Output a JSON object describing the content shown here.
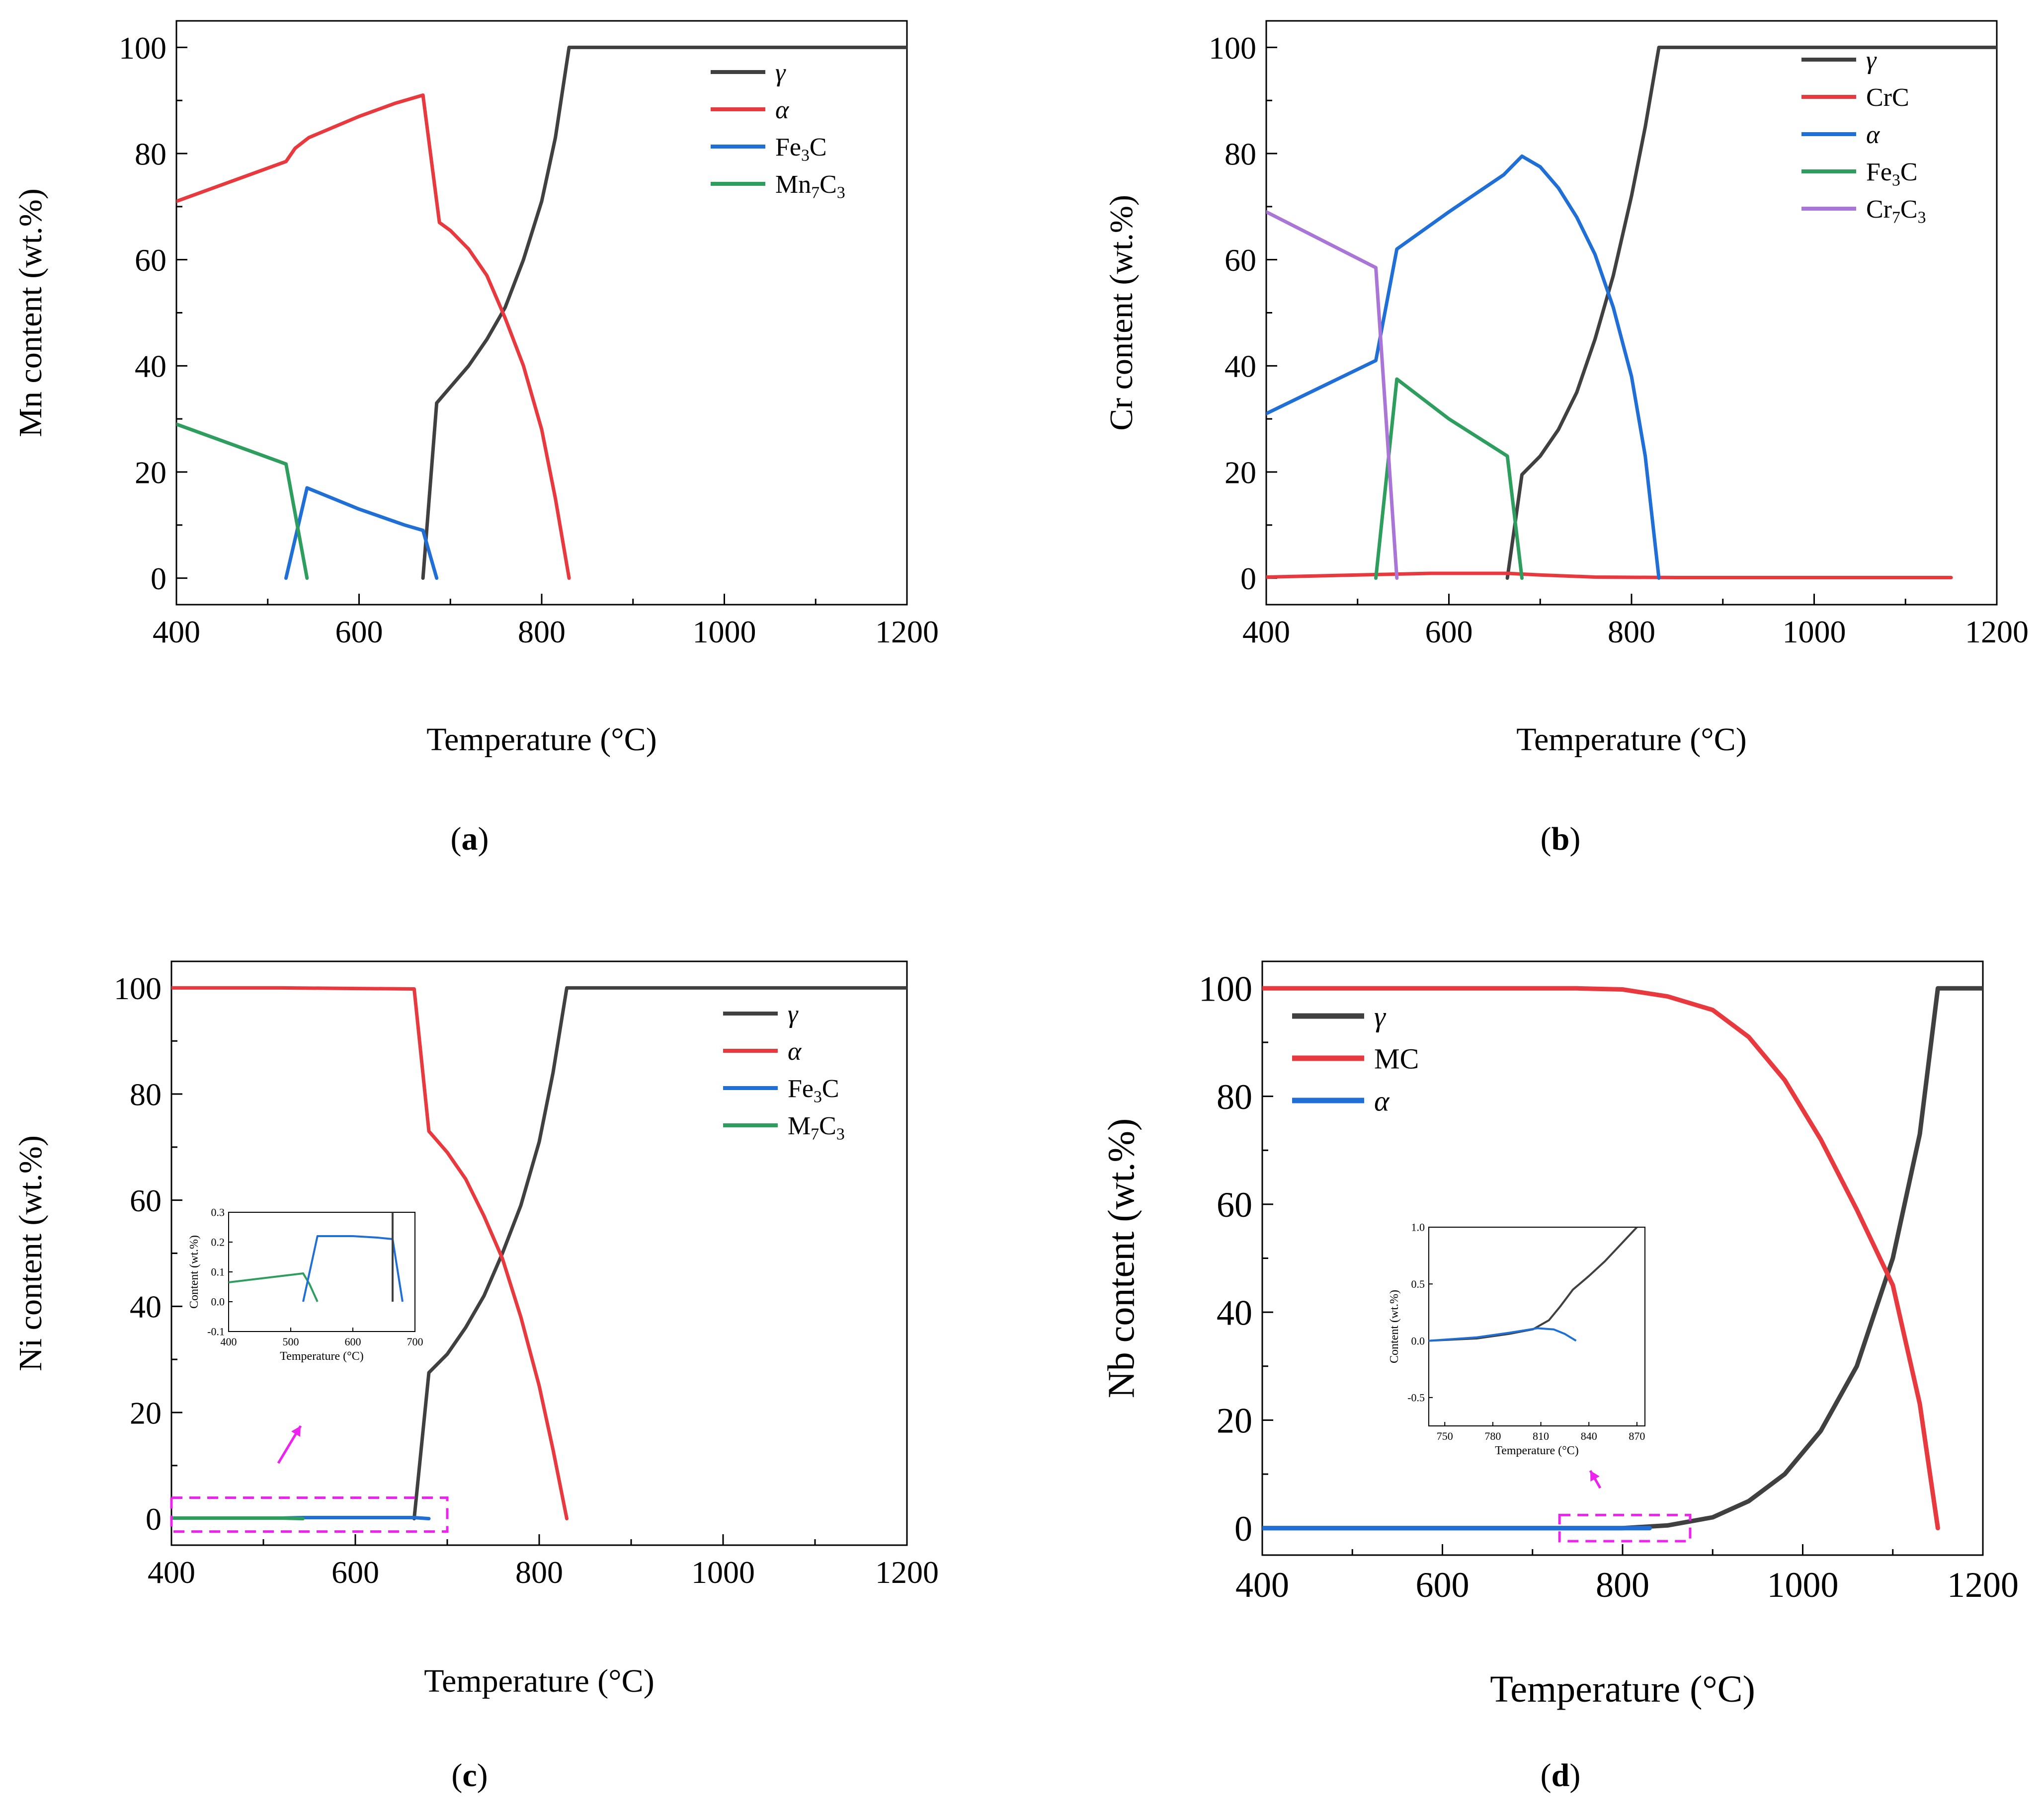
{
  "colors": {
    "gamma": "#404040",
    "red": "#e8393f",
    "blue": "#1f6fd6",
    "green": "#2e9e5e",
    "purple": "#a975d6",
    "magenta": "#ee22ee"
  },
  "chart_data": [
    {
      "type": "line",
      "label": "(a)",
      "label_parts": [
        "(",
        "a",
        ")"
      ],
      "xlabel": "Temperature (°C)",
      "ylabel": "Mn content (wt.%)",
      "xlim": [
        400,
        1200
      ],
      "ylim": [
        -5,
        105
      ],
      "xticks": [
        400,
        600,
        800,
        1000,
        1200
      ],
      "yticks": [
        0,
        20,
        40,
        60,
        80,
        100
      ],
      "legend_position": "top-right",
      "series": [
        {
          "name": "γ",
          "color": "gamma",
          "points": [
            [
              670,
              0
            ],
            [
              685,
              33
            ],
            [
              700,
              36
            ],
            [
              720,
              40
            ],
            [
              740,
              45
            ],
            [
              760,
              51
            ],
            [
              780,
              60
            ],
            [
              800,
              71
            ],
            [
              815,
              83
            ],
            [
              830,
              100
            ],
            [
              1200,
              100
            ]
          ]
        },
        {
          "name": "α",
          "color": "red",
          "points": [
            [
              400,
              71
            ],
            [
              520,
              78.5
            ],
            [
              530,
              81
            ],
            [
              545,
              83
            ],
            [
              600,
              87
            ],
            [
              640,
              89.5
            ],
            [
              670,
              91
            ],
            [
              688,
              67
            ],
            [
              700,
              65.5
            ],
            [
              720,
              62
            ],
            [
              740,
              57
            ],
            [
              760,
              49
            ],
            [
              780,
              40
            ],
            [
              800,
              28
            ],
            [
              815,
              15
            ],
            [
              830,
              0
            ]
          ]
        },
        {
          "name": "Fe3C",
          "name_base": "Fe",
          "name_sub": "3",
          "name_tail": "C",
          "color": "blue",
          "points": [
            [
              520,
              0
            ],
            [
              543,
              17
            ],
            [
              600,
              13
            ],
            [
              650,
              10
            ],
            [
              670,
              9
            ],
            [
              685,
              0
            ]
          ]
        },
        {
          "name": "Mn7C3",
          "name_base": "Mn",
          "name_sub": "7",
          "name_tail": "C",
          "name_sub2": "3",
          "color": "green",
          "points": [
            [
              400,
              29
            ],
            [
              520,
              21.5
            ],
            [
              543,
              0
            ]
          ]
        }
      ]
    },
    {
      "type": "line",
      "label": "(b)",
      "label_parts": [
        "(",
        "b",
        ")"
      ],
      "xlabel": "Temperature (°C)",
      "ylabel": "Cr content (wt.%)",
      "xlim": [
        400,
        1200
      ],
      "ylim": [
        -5,
        105
      ],
      "xticks": [
        400,
        600,
        800,
        1000,
        1200
      ],
      "yticks": [
        0,
        20,
        40,
        60,
        80,
        100
      ],
      "legend_position": "top-right",
      "series": [
        {
          "name": "γ",
          "color": "gamma",
          "points": [
            [
              664,
              0
            ],
            [
              680,
              19.5
            ],
            [
              700,
              23
            ],
            [
              720,
              28
            ],
            [
              740,
              35
            ],
            [
              760,
              45
            ],
            [
              780,
              57
            ],
            [
              800,
              72
            ],
            [
              815,
              85
            ],
            [
              830,
              100
            ],
            [
              1200,
              100
            ]
          ]
        },
        {
          "name": "CrC",
          "color": "red",
          "points": [
            [
              400,
              0.2
            ],
            [
              500,
              0.6
            ],
            [
              580,
              0.9
            ],
            [
              664,
              0.9
            ],
            [
              700,
              0.6
            ],
            [
              760,
              0.2
            ],
            [
              850,
              0.1
            ],
            [
              1000,
              0.1
            ],
            [
              1150,
              0.1
            ]
          ]
        },
        {
          "name": "α",
          "color": "blue",
          "points": [
            [
              400,
              31
            ],
            [
              520,
              41
            ],
            [
              543,
              62
            ],
            [
              600,
              69
            ],
            [
              660,
              76
            ],
            [
              680,
              79.5
            ],
            [
              700,
              77.5
            ],
            [
              720,
              73.5
            ],
            [
              740,
              68
            ],
            [
              760,
              61
            ],
            [
              780,
              51
            ],
            [
              800,
              38
            ],
            [
              815,
              23
            ],
            [
              830,
              0
            ]
          ]
        },
        {
          "name": "Fe3C",
          "name_base": "Fe",
          "name_sub": "3",
          "name_tail": "C",
          "color": "green",
          "points": [
            [
              520,
              0
            ],
            [
              543,
              37.5
            ],
            [
              600,
              30
            ],
            [
              664,
              23
            ],
            [
              680,
              0
            ]
          ]
        },
        {
          "name": "Cr7C3",
          "name_base": "Cr",
          "name_sub": "7",
          "name_tail": "C",
          "name_sub2": "3",
          "color": "purple",
          "points": [
            [
              400,
              69
            ],
            [
              520,
              58.5
            ],
            [
              543,
              0
            ]
          ]
        }
      ]
    },
    {
      "type": "line",
      "label": "(c)",
      "label_parts": [
        "(",
        "c",
        ")"
      ],
      "xlabel": "Temperature (°C)",
      "ylabel": "Ni content (wt.%)",
      "xlim": [
        400,
        1200
      ],
      "ylim": [
        -5,
        105
      ],
      "xticks": [
        400,
        600,
        800,
        1000,
        1200
      ],
      "yticks": [
        0,
        20,
        40,
        60,
        80,
        100
      ],
      "legend_position": "top-right",
      "series": [
        {
          "name": "γ",
          "color": "gamma",
          "points": [
            [
              664,
              0
            ],
            [
              680,
              27.5
            ],
            [
              700,
              31
            ],
            [
              720,
              36
            ],
            [
              740,
              42
            ],
            [
              760,
              50
            ],
            [
              780,
              59
            ],
            [
              800,
              71
            ],
            [
              815,
              84
            ],
            [
              830,
              100
            ],
            [
              1200,
              100
            ]
          ]
        },
        {
          "name": "α",
          "color": "red",
          "points": [
            [
              400,
              100
            ],
            [
              520,
              100
            ],
            [
              664,
              99.8
            ],
            [
              680,
              73
            ],
            [
              700,
              69
            ],
            [
              720,
              64
            ],
            [
              740,
              57
            ],
            [
              760,
              49
            ],
            [
              780,
              38
            ],
            [
              800,
              25
            ],
            [
              815,
              13
            ],
            [
              830,
              0
            ]
          ]
        },
        {
          "name": "Fe3C",
          "name_base": "Fe",
          "name_sub": "3",
          "name_tail": "C",
          "color": "blue",
          "points": [
            [
              520,
              0.1
            ],
            [
              543,
              0.2
            ],
            [
              664,
              0.2
            ],
            [
              680,
              0
            ]
          ]
        },
        {
          "name": "M7C3",
          "name_base": "M",
          "name_sub": "7",
          "name_tail": "C",
          "name_sub2": "3",
          "color": "green",
          "points": [
            [
              400,
              0.1
            ],
            [
              520,
              0.1
            ],
            [
              543,
              0
            ]
          ]
        }
      ],
      "inset": {
        "xlabel": "Temperature (°C)",
        "ylabel": "Content (wt.%)",
        "xlim": [
          400,
          700
        ],
        "ylim": [
          -0.1,
          0.3
        ],
        "xticks": [
          400,
          500,
          600,
          700
        ],
        "yticks": [
          -0.1,
          0.0,
          0.1,
          0.2,
          0.3
        ],
        "ytick_labels": [
          "-0.1",
          "0.0",
          "0.1",
          "0.2",
          "0.3"
        ],
        "series": [
          {
            "color": "green",
            "points": [
              [
                400,
                0.065
              ],
              [
                460,
                0.08
              ],
              [
                520,
                0.095
              ],
              [
                530,
                0.06
              ],
              [
                543,
                0.0
              ]
            ]
          },
          {
            "color": "blue",
            "points": [
              [
                520,
                0.0
              ],
              [
                543,
                0.22
              ],
              [
                600,
                0.22
              ],
              [
                640,
                0.215
              ],
              [
                664,
                0.21
              ],
              [
                680,
                0.0
              ]
            ]
          },
          {
            "color": "gamma",
            "points": [
              [
                664,
                0.0
              ],
              [
                664,
                0.3
              ]
            ]
          }
        ]
      }
    },
    {
      "type": "line",
      "label": "(d)",
      "label_parts": [
        "(",
        "d",
        ")"
      ],
      "xlabel": "Temperature (°C)",
      "ylabel": "Nb content (wt.%)",
      "xlim": [
        400,
        1200
      ],
      "ylim": [
        -5,
        105
      ],
      "xticks": [
        400,
        600,
        800,
        1000,
        1200
      ],
      "yticks": [
        0,
        20,
        40,
        60,
        80,
        100
      ],
      "legend_position": "top-left",
      "series": [
        {
          "name": "γ",
          "color": "gamma",
          "points": [
            [
              400,
              0
            ],
            [
              800,
              0
            ],
            [
              850,
              0.5
            ],
            [
              900,
              2
            ],
            [
              940,
              5
            ],
            [
              980,
              10
            ],
            [
              1020,
              18
            ],
            [
              1060,
              30
            ],
            [
              1100,
              50
            ],
            [
              1130,
              73
            ],
            [
              1150,
              100
            ],
            [
              1200,
              100
            ]
          ]
        },
        {
          "name": "MC",
          "color": "red",
          "points": [
            [
              400,
              100
            ],
            [
              750,
              100
            ],
            [
              800,
              99.8
            ],
            [
              850,
              98.5
            ],
            [
              900,
              96
            ],
            [
              940,
              91
            ],
            [
              980,
              83
            ],
            [
              1020,
              72
            ],
            [
              1060,
              59
            ],
            [
              1100,
              45
            ],
            [
              1130,
              23
            ],
            [
              1150,
              0
            ]
          ]
        },
        {
          "name": "α",
          "color": "blue",
          "points": [
            [
              400,
              0
            ],
            [
              810,
              0
            ],
            [
              830,
              0
            ]
          ]
        }
      ],
      "inset": {
        "xlabel": "Temperature (°C)",
        "ylabel": "Content (wt.%)",
        "xlim": [
          740,
          875
        ],
        "ylim": [
          -0.75,
          1.0
        ],
        "xticks": [
          750,
          780,
          810,
          840,
          870
        ],
        "yticks": [
          -0.5,
          0.0,
          0.5,
          1.0
        ],
        "ytick_labels": [
          "-0.5",
          "0.0",
          "0.5",
          "1.0"
        ],
        "series": [
          {
            "color": "gamma",
            "points": [
              [
                740,
                0.0
              ],
              [
                770,
                0.02
              ],
              [
                790,
                0.06
              ],
              [
                805,
                0.1
              ],
              [
                815,
                0.18
              ],
              [
                822,
                0.3
              ],
              [
                830,
                0.45
              ],
              [
                840,
                0.57
              ],
              [
                850,
                0.7
              ],
              [
                860,
                0.85
              ],
              [
                870,
                1.0
              ]
            ]
          },
          {
            "color": "blue",
            "points": [
              [
                740,
                0.0
              ],
              [
                770,
                0.03
              ],
              [
                790,
                0.07
              ],
              [
                808,
                0.11
              ],
              [
                818,
                0.1
              ],
              [
                825,
                0.06
              ],
              [
                832,
                0.0
              ]
            ]
          }
        ]
      }
    }
  ]
}
